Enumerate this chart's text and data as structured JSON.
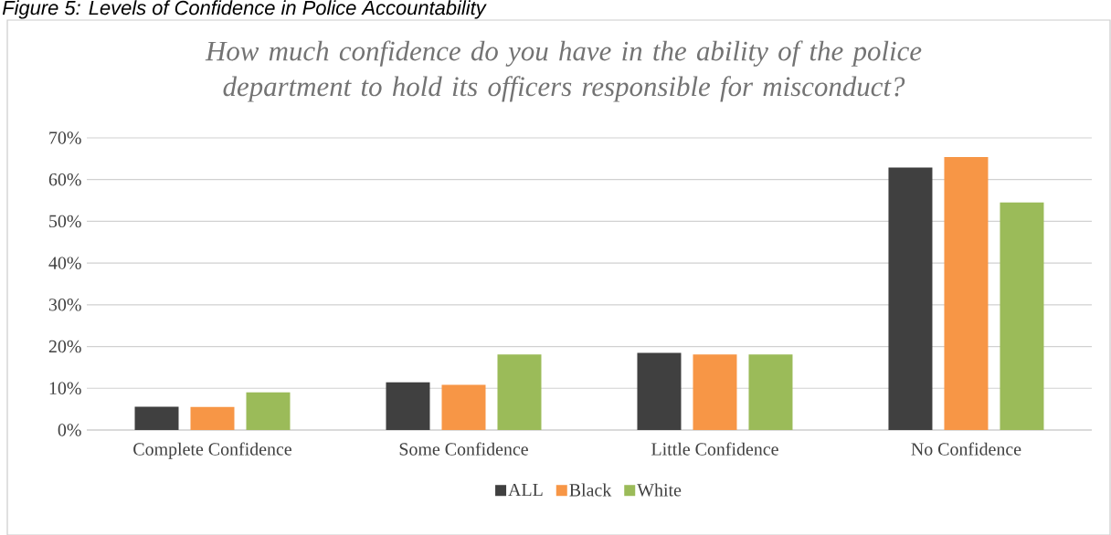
{
  "chart_data": {
    "type": "bar",
    "title": "How much confidence do you have in the ability of the police department to hold its officers responsible for misconduct?",
    "annotations": [
      "Figure 5: Levels of Confidence in Police Accountability"
    ],
    "categories": [
      "Complete Confidence",
      "Some Confidence",
      "Little Confidence",
      "No Confidence"
    ],
    "series": [
      {
        "name": "ALL",
        "color": "#404040",
        "values": [
          5.6,
          11.4,
          18.5,
          62.9
        ]
      },
      {
        "name": "Black",
        "color": "#f79646",
        "values": [
          5.5,
          10.8,
          18.1,
          65.4
        ]
      },
      {
        "name": "White",
        "color": "#9bbb59",
        "values": [
          9.0,
          18.1,
          18.1,
          54.5
        ]
      }
    ],
    "ylim": [
      0,
      70
    ],
    "yticks": [
      {
        "value": 0,
        "label": "0%"
      },
      {
        "value": 10,
        "label": "10%"
      },
      {
        "value": 20,
        "label": "20%"
      },
      {
        "value": 30,
        "label": "30%"
      },
      {
        "value": 40,
        "label": "40%"
      },
      {
        "value": 50,
        "label": "50%"
      },
      {
        "value": 60,
        "label": "60%"
      },
      {
        "value": 70,
        "label": "70%"
      }
    ],
    "grid": "y",
    "legend": "bottom"
  }
}
